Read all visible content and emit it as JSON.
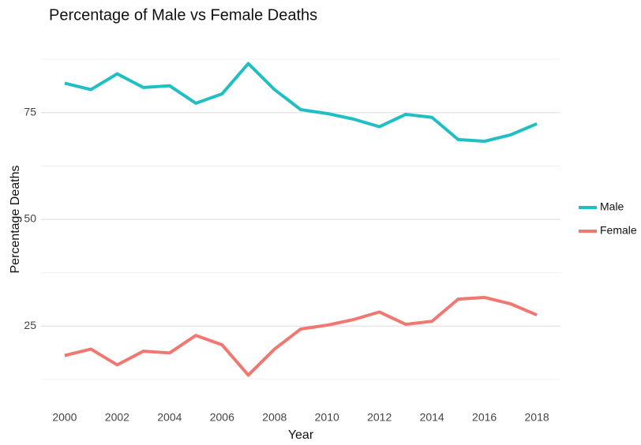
{
  "chart_data": {
    "type": "line",
    "title": "Percentage of Male vs Female Deaths",
    "x_label": "Year",
    "y_label": "Percentage Deaths",
    "x": [
      2000,
      2001,
      2002,
      2003,
      2004,
      2005,
      2006,
      2007,
      2008,
      2009,
      2010,
      2011,
      2012,
      2013,
      2014,
      2015,
      2016,
      2017,
      2018
    ],
    "series": [
      {
        "name": "Male",
        "color": "#1fbfc3",
        "values": [
          81.9,
          80.4,
          84.1,
          80.9,
          81.3,
          77.2,
          79.4,
          86.5,
          80.4,
          75.7,
          74.8,
          73.5,
          71.7,
          74.6,
          73.9,
          68.7,
          68.3,
          69.8,
          72.4
        ]
      },
      {
        "name": "Female",
        "color": "#f07870",
        "values": [
          18.1,
          19.6,
          15.9,
          19.1,
          18.7,
          22.8,
          20.6,
          13.5,
          19.6,
          24.3,
          25.2,
          26.5,
          28.3,
          25.4,
          26.1,
          31.3,
          31.7,
          30.2,
          27.6
        ]
      }
    ],
    "xlim": [
      1999.1,
      2018.9
    ],
    "xticks": [
      2000,
      2002,
      2004,
      2006,
      2008,
      2010,
      2012,
      2014,
      2016,
      2018
    ],
    "ylim": [
      9.7,
      90.3
    ],
    "yticks": [
      25,
      50,
      75
    ],
    "yminor_ticks": [
      12.5,
      37.5,
      62.5,
      87.5
    ],
    "grid": true,
    "legend": "right"
  }
}
